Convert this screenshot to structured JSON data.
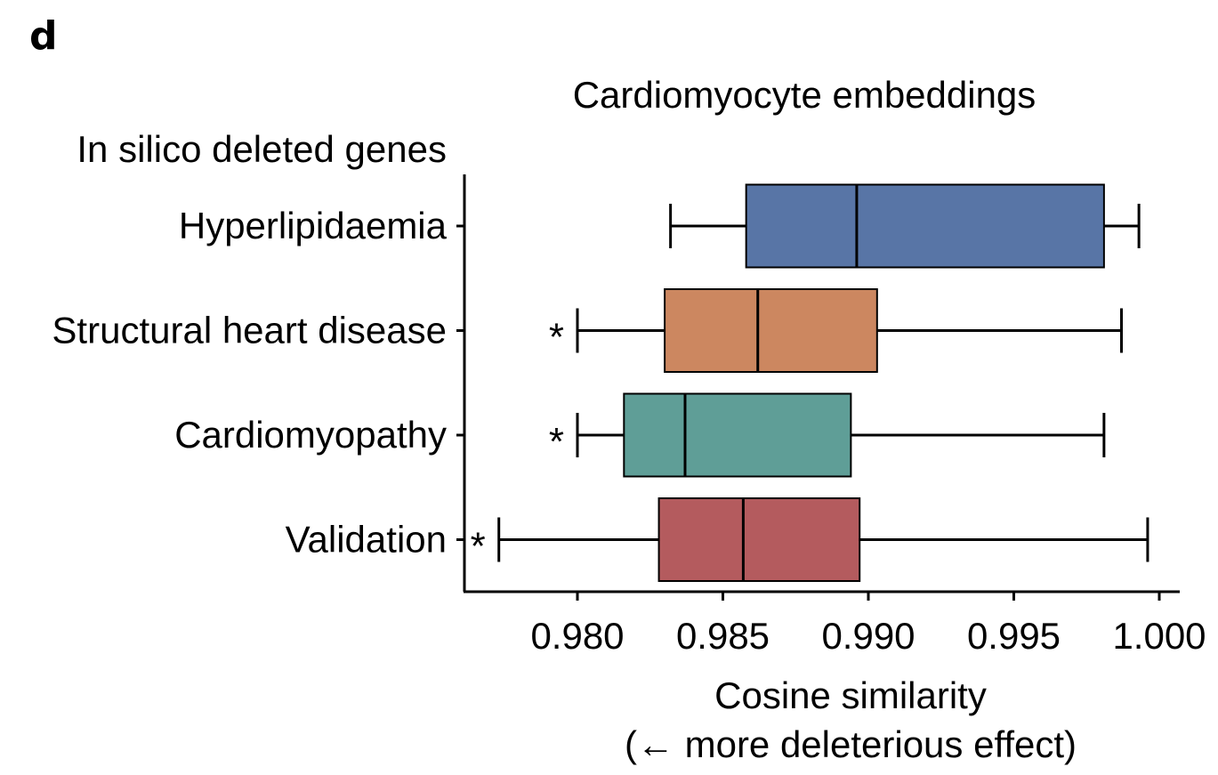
{
  "panel_label": "d",
  "chart_data": {
    "type": "boxplot",
    "orientation": "horizontal",
    "title": "Cardiomyocyte embeddings",
    "ylabel": "In silico deleted genes",
    "xlabel": "Cosine similarity",
    "xlabel_note": "(← more deleterious effect)",
    "xlim": [
      0.976,
      1.0035
    ],
    "xticks": [
      0.98,
      0.985,
      0.99,
      0.995,
      1.0
    ],
    "xtick_labels": [
      "0.980",
      "0.985",
      "0.990",
      "0.995",
      "1.000"
    ],
    "categories": [
      "Hyperlipidaemia",
      "Structural heart disease",
      "Cardiomyopathy",
      "Validation"
    ],
    "series": [
      {
        "category": "Hyperlipidaemia",
        "whisker_low": 0.9832,
        "q1": 0.9858,
        "median": 0.9896,
        "q3": 0.9981,
        "whisker_high": 0.9993,
        "significance": "",
        "color": "#5875a6"
      },
      {
        "category": "Structural heart disease",
        "whisker_low": 0.98,
        "q1": 0.983,
        "median": 0.9862,
        "q3": 0.9903,
        "whisker_high": 0.9987,
        "significance": "*",
        "color": "#cc8760"
      },
      {
        "category": "Cardiomyopathy",
        "whisker_low": 0.98,
        "q1": 0.9816,
        "median": 0.9837,
        "q3": 0.9894,
        "whisker_high": 0.9981,
        "significance": "*",
        "color": "#5f9e97"
      },
      {
        "category": "Validation",
        "whisker_low": 0.9773,
        "q1": 0.9828,
        "median": 0.9857,
        "q3": 0.9897,
        "whisker_high": 0.9996,
        "significance": "*",
        "color": "#b45b5e"
      }
    ]
  }
}
